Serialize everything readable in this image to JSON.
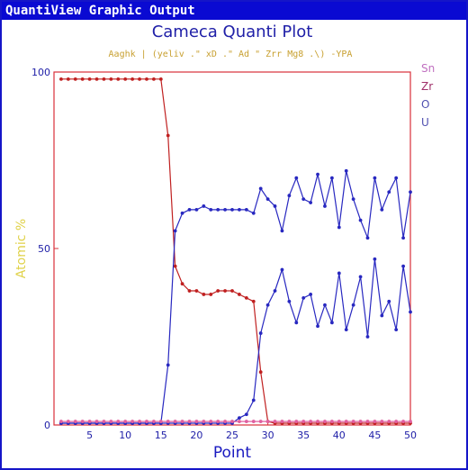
{
  "window": {
    "title": "QuantiView Graphic Output"
  },
  "colors": {
    "window_border": "#1515c8",
    "title_bg": "#0a0ad2",
    "plot_frame": "#d9303a",
    "title_text": "#2020a8",
    "axis_ylabel": "#e0d24a",
    "xlabel": "#1a1ac0",
    "series_red": "#c02020",
    "series_blue": "#2828c0",
    "series_pink": "#e060a0",
    "legend_sn": "#c070c0",
    "legend_zr": "#a0306a",
    "legend_o": "#5050b0",
    "legend_u": "#5050b0",
    "subtitle_text": "#c8a030"
  },
  "chart_data": {
    "type": "line",
    "title": "Cameca Quanti Plot",
    "subtitle": "Aaghk | (yeliv .\" xD .\" Ad \" Zrr Mg8 .\\) -YPA",
    "xlabel": "Point",
    "ylabel": "Atomic %",
    "xlim": [
      0,
      50
    ],
    "ylim": [
      0,
      100
    ],
    "xticks": [
      5,
      10,
      15,
      20,
      25,
      30,
      35,
      40,
      45,
      50
    ],
    "yticks": [
      0,
      50,
      100
    ],
    "grid": false,
    "legend_position": "right",
    "legend": [
      "Sn",
      "Zr",
      "O",
      "U"
    ],
    "x": [
      1,
      2,
      3,
      4,
      5,
      6,
      7,
      8,
      9,
      10,
      11,
      12,
      13,
      14,
      15,
      16,
      17,
      18,
      19,
      20,
      21,
      22,
      23,
      24,
      25,
      26,
      27,
      28,
      29,
      30,
      31,
      32,
      33,
      34,
      35,
      36,
      37,
      38,
      39,
      40,
      41,
      42,
      43,
      44,
      45,
      46,
      47,
      48,
      49,
      50
    ],
    "series": [
      {
        "color": "#c02020",
        "values": [
          98,
          98,
          98,
          98,
          98,
          98,
          98,
          98,
          98,
          98,
          98,
          98,
          98,
          98,
          98,
          82,
          45,
          40,
          38,
          38,
          37,
          37,
          38,
          38,
          38,
          37,
          36,
          35,
          15,
          1,
          0.5,
          0.5,
          0.5,
          0.5,
          0.5,
          0.5,
          0.5,
          0.5,
          0.5,
          0.5,
          0.5,
          0.5,
          0.5,
          0.5,
          0.5,
          0.5,
          0.5,
          0.5,
          0.5,
          0.5
        ]
      },
      {
        "color": "#2828c0",
        "values": [
          0.5,
          0.5,
          0.5,
          0.5,
          0.5,
          0.5,
          0.5,
          0.5,
          0.5,
          0.5,
          0.5,
          0.5,
          0.5,
          0.5,
          0.5,
          17,
          55,
          60,
          61,
          61,
          62,
          61,
          61,
          61,
          61,
          61,
          61,
          60,
          67,
          64,
          62,
          55,
          65,
          70,
          64,
          63,
          71,
          62,
          70,
          56,
          72,
          64,
          58,
          53,
          70,
          61,
          66,
          70,
          53,
          66
        ]
      },
      {
        "color": "#2828c0",
        "values": [
          0.5,
          0.5,
          0.5,
          0.5,
          0.5,
          0.5,
          0.5,
          0.5,
          0.5,
          0.5,
          0.5,
          0.5,
          0.5,
          0.5,
          0.5,
          0.5,
          0.5,
          0.5,
          0.5,
          0.5,
          0.5,
          0.5,
          0.5,
          0.5,
          0.5,
          2,
          3,
          7,
          26,
          34,
          38,
          44,
          35,
          29,
          36,
          37,
          28,
          34,
          29,
          43,
          27,
          34,
          42,
          25,
          47,
          31,
          35,
          27,
          45,
          32
        ]
      },
      {
        "color": "#e060a0",
        "values": [
          1,
          1,
          1,
          1,
          1,
          1,
          1,
          1,
          1,
          1,
          1,
          1,
          1,
          1,
          1,
          1,
          1,
          1,
          1,
          1,
          1,
          1,
          1,
          1,
          1,
          1,
          1,
          1,
          1,
          1,
          1,
          1,
          1,
          1,
          1,
          1,
          1,
          1,
          1,
          1,
          1,
          1,
          1,
          1,
          1,
          1,
          1,
          1,
          1,
          1
        ]
      }
    ]
  }
}
